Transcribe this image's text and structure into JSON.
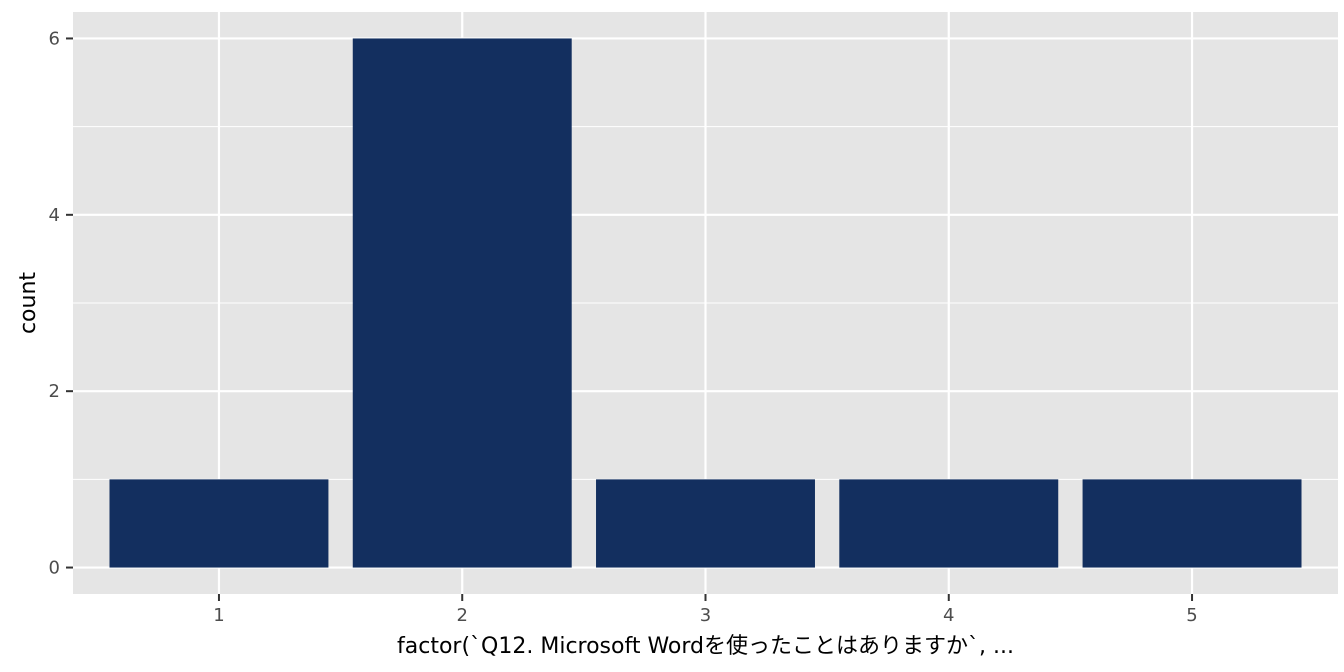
{
  "chart_data": {
    "type": "bar",
    "title": "",
    "xlabel": "factor(`Q12. Microsoft Wordを使ったことはありますか`, ...",
    "ylabel": "count",
    "categories": [
      "1",
      "2",
      "3",
      "4",
      "5"
    ],
    "values": [
      1,
      6,
      1,
      1,
      1
    ],
    "ylim": [
      -0.3,
      6.3
    ],
    "yticks": [
      0,
      2,
      4,
      6
    ],
    "grid": true,
    "legend": "none",
    "colors": {
      "bar": "#132f5f",
      "panel": "#e5e5e5",
      "grid": "#ffffff"
    }
  }
}
